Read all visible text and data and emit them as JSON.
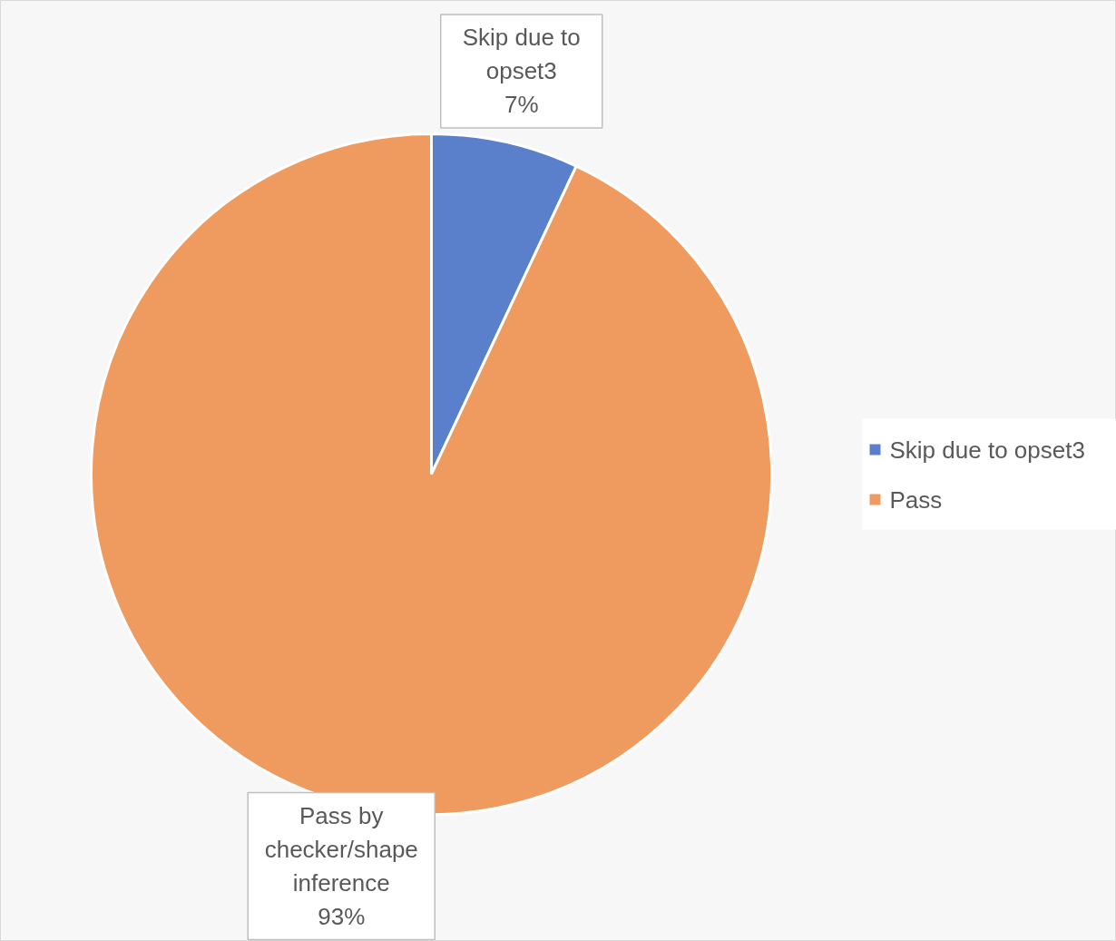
{
  "chart_data": {
    "type": "pie",
    "categories": [
      "Skip due to opset3",
      "Pass"
    ],
    "values": [
      7,
      93
    ],
    "colors": [
      "#5a80cb",
      "#ef9a5e"
    ],
    "value_labels": [
      "Skip due to opset3\n7%",
      "Pass by checker/shape inference\n93%"
    ],
    "legend": "right"
  }
}
